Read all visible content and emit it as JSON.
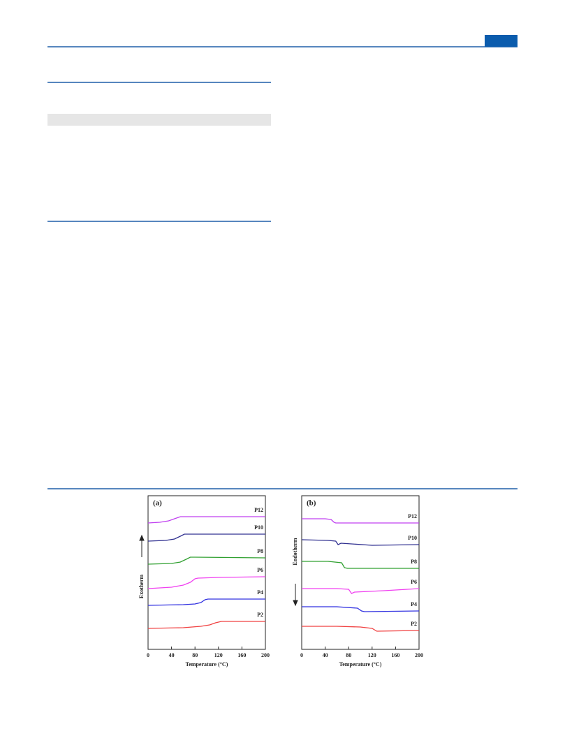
{
  "chart_data": [
    {
      "type": "line",
      "title": "(a)",
      "x_label": "Temperature (°C)",
      "y_label": "Exotherm",
      "xlim": [
        0,
        200
      ],
      "xticks": [
        0,
        40,
        80,
        120,
        160,
        200
      ],
      "ylim": [
        0,
        220
      ],
      "series": [
        {
          "name": "P12",
          "color": "#c040f0",
          "x": [
            0,
            20,
            35,
            45,
            55,
            65,
            100,
            200
          ],
          "values": [
            181,
            182,
            184,
            187,
            190,
            190,
            190,
            190
          ]
        },
        {
          "name": "P10",
          "color": "#303090",
          "x": [
            0,
            30,
            45,
            55,
            62,
            70,
            200
          ],
          "values": [
            155,
            156,
            158,
            162,
            165,
            165,
            165
          ]
        },
        {
          "name": "P8",
          "color": "#30a030",
          "x": [
            0,
            40,
            55,
            65,
            72,
            80,
            200
          ],
          "values": [
            122,
            123,
            125,
            129,
            132,
            132,
            131
          ]
        },
        {
          "name": "P6",
          "color": "#f040f0",
          "x": [
            0,
            40,
            60,
            72,
            80,
            85,
            120,
            200
          ],
          "values": [
            87,
            89,
            92,
            96,
            101,
            102,
            103,
            104
          ]
        },
        {
          "name": "P4",
          "color": "#3030e0",
          "x": [
            0,
            60,
            80,
            90,
            97,
            102,
            200
          ],
          "values": [
            63,
            64,
            65,
            67,
            71,
            72,
            72
          ]
        },
        {
          "name": "P2",
          "color": "#f04040",
          "x": [
            0,
            60,
            90,
            105,
            115,
            125,
            200
          ],
          "values": [
            30,
            31,
            33,
            35,
            38,
            40,
            40
          ]
        }
      ]
    },
    {
      "type": "line",
      "title": "(b)",
      "x_label": "Temperature (°C)",
      "y_label": "Endotherm",
      "xlim": [
        0,
        200
      ],
      "xticks": [
        0,
        40,
        80,
        120,
        160,
        200
      ],
      "ylim": [
        0,
        220
      ],
      "series": [
        {
          "name": "P12",
          "color": "#c040f0",
          "x": [
            0,
            40,
            50,
            55,
            58,
            200
          ],
          "values": [
            187,
            187,
            186,
            182,
            181,
            181
          ]
        },
        {
          "name": "P10",
          "color": "#303090",
          "x": [
            0,
            45,
            58,
            62,
            67,
            120,
            200
          ],
          "values": [
            157,
            156,
            155,
            150,
            152,
            149,
            150
          ]
        },
        {
          "name": "P8",
          "color": "#30a030",
          "x": [
            0,
            45,
            68,
            73,
            78,
            200
          ],
          "values": [
            126,
            126,
            124,
            117,
            116,
            116
          ]
        },
        {
          "name": "P6",
          "color": "#f040f0",
          "x": [
            0,
            60,
            80,
            85,
            90,
            140,
            200
          ],
          "values": [
            87,
            87,
            86,
            80,
            82,
            84,
            87
          ]
        },
        {
          "name": "P4",
          "color": "#3030e0",
          "x": [
            0,
            60,
            95,
            102,
            107,
            200
          ],
          "values": [
            61,
            61,
            59,
            55,
            54,
            55
          ]
        },
        {
          "name": "P2",
          "color": "#f04040",
          "x": [
            0,
            60,
            100,
            120,
            128,
            200
          ],
          "values": [
            33,
            33,
            32,
            30,
            26,
            27
          ]
        }
      ]
    }
  ]
}
